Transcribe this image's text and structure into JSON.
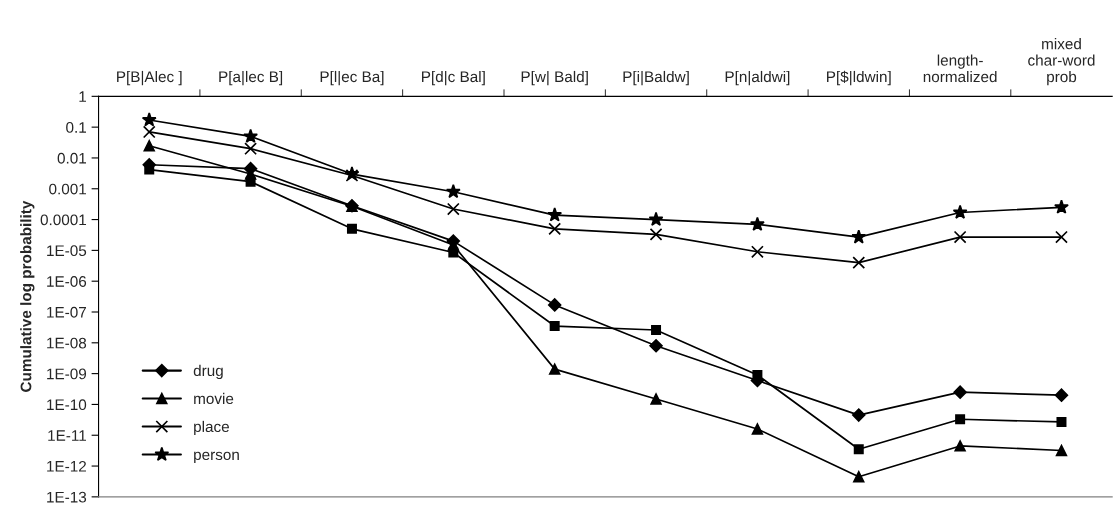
{
  "chart_data": {
    "type": "line",
    "ylabel": "Cumulative log probability",
    "categories": [
      "P[B|Alec ]",
      "P[a|lec B]",
      "P[l|ec Ba]",
      "P[d|c Bal]",
      "P[w| Bald]",
      "P[i|Baldw]",
      "P[n|aldwi]",
      "P[$|ldwin]",
      "length-\nnormalized",
      "mixed\nchar-word\nprob"
    ],
    "series": [
      {
        "name": "drug",
        "color": "#000000",
        "marker": "diamond",
        "values": [
          0.006,
          0.0045,
          0.00028,
          2e-05,
          1.7e-07,
          8e-09,
          6e-10,
          4.5e-11,
          2.5e-10,
          2e-10
        ]
      },
      {
        "color": "#000000",
        "marker": "square",
        "values": [
          0.0042,
          0.0017,
          5e-05,
          8.5e-06,
          3.5e-08,
          2.6e-08,
          9e-10,
          3.5e-12,
          3.3e-11,
          2.7e-11
        ]
      },
      {
        "name": "movie",
        "color": "#000000",
        "marker": "triangle",
        "values": [
          0.025,
          0.003,
          0.00027,
          1.5e-05,
          1.4e-09,
          1.5e-10,
          1.6e-11,
          4.5e-13,
          4.5e-12,
          3.2e-12
        ]
      },
      {
        "name": "place",
        "color": "#000000",
        "marker": "cross",
        "values": [
          0.07,
          0.02,
          0.0027,
          0.00022,
          5e-05,
          3.3e-05,
          9e-06,
          4e-06,
          2.7e-05,
          2.7e-05
        ]
      },
      {
        "name": "person",
        "color": "#000000",
        "marker": "star",
        "values": [
          0.17,
          0.05,
          0.003,
          0.0008,
          0.00014,
          0.0001,
          7e-05,
          2.7e-05,
          0.00017,
          0.00025
        ]
      }
    ],
    "log": "y",
    "ylim": [
      1e-13,
      1
    ],
    "yticks": [
      1,
      0.1,
      0.01,
      0.001,
      0.0001,
      {
        "value": 1e-05,
        "label": "1E-05"
      },
      {
        "value": 1e-06,
        "label": "1E-06"
      },
      {
        "value": 1e-07,
        "label": "1E-07"
      },
      {
        "value": 1e-08,
        "label": "1E-08"
      },
      {
        "value": 1e-09,
        "label": "1E-09"
      },
      {
        "value": 1e-10,
        "label": "1E-10"
      },
      {
        "value": 1e-11,
        "label": "1E-11"
      },
      {
        "value": 1e-12,
        "label": "1E-12"
      },
      {
        "value": 1e-13,
        "label": "1E-13"
      }
    ],
    "grid": false,
    "legend": "bottom left"
  }
}
